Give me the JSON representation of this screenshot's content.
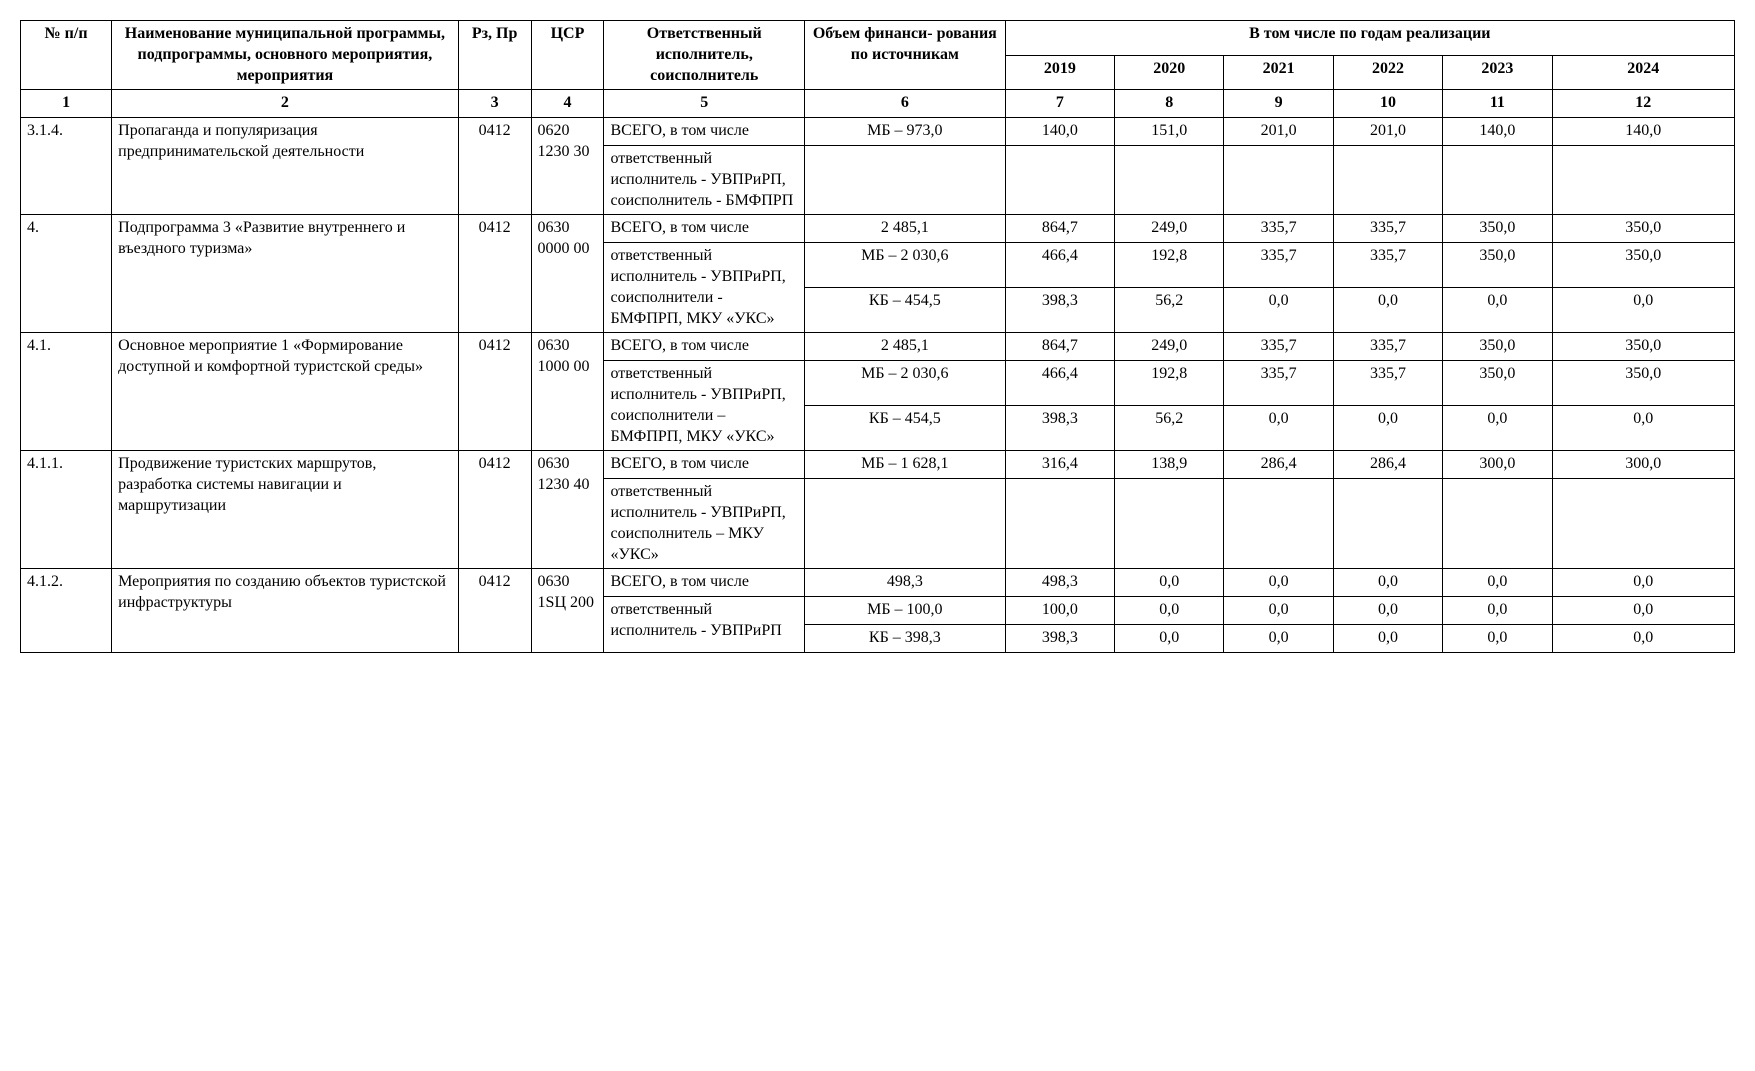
{
  "styling": {
    "background_color": "#ffffff",
    "text_color": "#000000",
    "border_color": "#000000",
    "font_family": "Times New Roman",
    "base_font_size_pt": 12,
    "header_font_weight": "bold"
  },
  "columns": {
    "c1": "№\nп/п",
    "c2": "Наименование муниципальной программы, подпрограммы, основного мероприятия, мероприятия",
    "c3": "Рз, Пр",
    "c4": "ЦСР",
    "c5": "Ответственный исполнитель, соисполнитель",
    "c6": "Объем финанси- рования по источникам",
    "years_header": "В том числе по годам реализации",
    "years": [
      "2019",
      "2020",
      "2021",
      "2022",
      "2023",
      "2024"
    ]
  },
  "colnums": [
    "1",
    "2",
    "3",
    "4",
    "5",
    "6",
    "7",
    "8",
    "9",
    "10",
    "11",
    "12"
  ],
  "rows": [
    {
      "num": "3.1.4.",
      "name": "Пропаганда и популяризация предпринимательской деятельности",
      "rz": "0412",
      "csr": "0620 1230 30",
      "lines": [
        {
          "resp": "ВСЕГО,\nв том числе",
          "vol": "МБ – 973,0",
          "y": [
            "140,0",
            "151,0",
            "201,0",
            "201,0",
            "140,0",
            "140,0"
          ]
        },
        {
          "resp": "ответственный исполнитель - УВПРиРП, соисполнитель - БМФПРП",
          "vol": "",
          "y": [
            "",
            "",
            "",
            "",
            "",
            ""
          ]
        }
      ]
    },
    {
      "num": "4.",
      "name": "Подпрограмма 3 «Развитие внутреннего и въездного туризма»",
      "rz": "0412",
      "csr": "0630 0000 00",
      "resp_span": "ВСЕГО,\nв том числе|||ответственный исполнитель - УВПРиРП, соисполнители - БМФПРП, МКУ «УКС»",
      "lines": [
        {
          "resp": "ВСЕГО,\nв том числе",
          "vol": "2 485,1",
          "y": [
            "864,7",
            "249,0",
            "335,7",
            "335,7",
            "350,0",
            "350,0"
          ]
        },
        {
          "resp": "ответственный исполнитель - УВПРиРП, соисполнители - БМФПРП, МКУ «УКС»",
          "resp_rowspan": 2,
          "vol": "МБ – 2 030,6",
          "y": [
            "466,4",
            "192,8",
            "335,7",
            "335,7",
            "350,0",
            "350,0"
          ]
        },
        {
          "vol": "КБ – 454,5",
          "y": [
            "398,3",
            "56,2",
            "0,0",
            "0,0",
            "0,0",
            "0,0"
          ]
        }
      ]
    },
    {
      "num": "4.1.",
      "name": "Основное мероприятие 1 «Формирование доступной и комфортной туристской среды»",
      "rz": "0412",
      "csr": "0630 1000 00",
      "lines": [
        {
          "resp": "ВСЕГО,\nв том числе",
          "vol": "2 485,1",
          "y": [
            "864,7",
            "249,0",
            "335,7",
            "335,7",
            "350,0",
            "350,0"
          ]
        },
        {
          "resp": "ответственный исполнитель - УВПРиРП, соисполнители – БМФПРП, МКУ «УКС»",
          "resp_rowspan": 2,
          "vol": "МБ – 2 030,6",
          "y": [
            "466,4",
            "192,8",
            "335,7",
            "335,7",
            "350,0",
            "350,0"
          ]
        },
        {
          "vol": "КБ – 454,5",
          "y": [
            "398,3",
            "56,2",
            "0,0",
            "0,0",
            "0,0",
            "0,0"
          ]
        }
      ]
    },
    {
      "num": "4.1.1.",
      "name": "Продвижение туристских маршрутов, разработка системы навигации и маршрутизации",
      "rz": "0412",
      "csr": "0630 1230 40",
      "lines": [
        {
          "resp": "ВСЕГО,\nв том числе",
          "vol": "МБ – 1 628,1",
          "y": [
            "316,4",
            "138,9",
            "286,4",
            "286,4",
            "300,0",
            "300,0"
          ]
        },
        {
          "resp": "ответственный исполнитель - УВПРиРП, соисполнитель – МКУ «УКС»",
          "vol": "",
          "y": [
            "",
            "",
            "",
            "",
            "",
            ""
          ]
        }
      ]
    },
    {
      "num": "4.1.2.",
      "name": "Мероприятия по созданию объектов туристской инфраструктуры",
      "rz": "0412",
      "csr": "0630 1SЦ 200",
      "lines": [
        {
          "resp": "ВСЕГО,\nв том числе",
          "vol": "498,3",
          "y": [
            "498,3",
            "0,0",
            "0,0",
            "0,0",
            "0,0",
            "0,0"
          ]
        },
        {
          "resp": "ответственный исполнитель - УВПРиРП",
          "resp_rowspan": 2,
          "vol": "МБ – 100,0",
          "y": [
            "100,0",
            "0,0",
            "0,0",
            "0,0",
            "0,0",
            "0,0"
          ]
        },
        {
          "vol": "КБ – 398,3",
          "y": [
            "398,3",
            "0,0",
            "0,0",
            "0,0",
            "0,0",
            "0,0"
          ]
        }
      ]
    }
  ]
}
